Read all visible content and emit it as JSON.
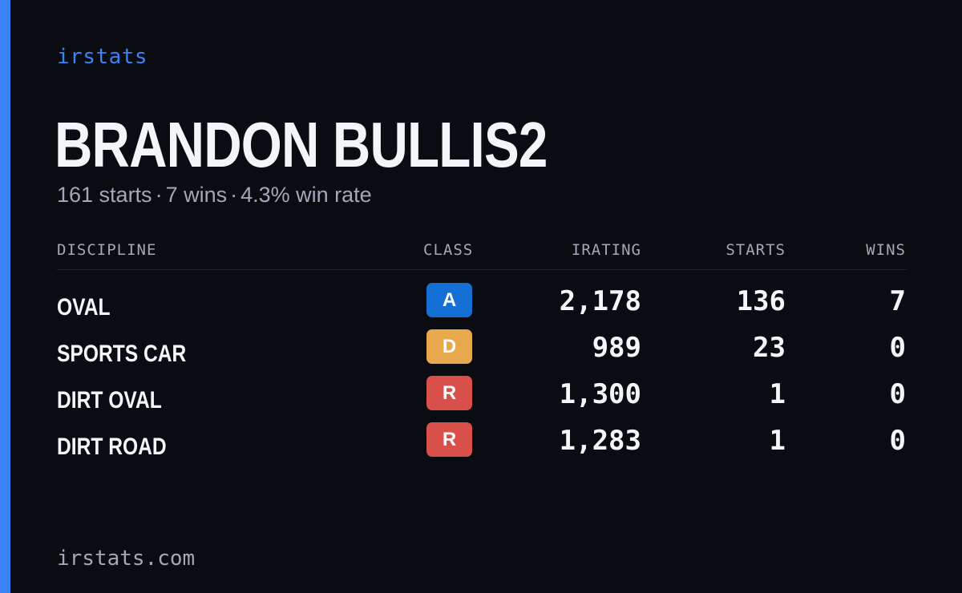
{
  "brand": "irstats",
  "accent_color": "#3b82f6",
  "driver": {
    "name": "BRANDON BULLIS2"
  },
  "summary": {
    "starts": "161 starts",
    "wins": "7 wins",
    "win_rate": "4.3% win rate",
    "separator": "·"
  },
  "table": {
    "headers": {
      "discipline": "DISCIPLINE",
      "class": "CLASS",
      "irating": "IRATING",
      "starts": "STARTS",
      "wins": "WINS"
    },
    "rows": [
      {
        "discipline": "OVAL",
        "class": "A",
        "class_color": "#1570d6",
        "irating": "2,178",
        "starts": "136",
        "wins": "7"
      },
      {
        "discipline": "SPORTS CAR",
        "class": "D",
        "class_color": "#e8a84c",
        "irating": "989",
        "starts": "23",
        "wins": "0"
      },
      {
        "discipline": "DIRT OVAL",
        "class": "R",
        "class_color": "#d9504a",
        "irating": "1,300",
        "starts": "1",
        "wins": "0"
      },
      {
        "discipline": "DIRT ROAD",
        "class": "R",
        "class_color": "#d9504a",
        "irating": "1,283",
        "starts": "1",
        "wins": "0"
      }
    ]
  },
  "footer": "irstats.com"
}
